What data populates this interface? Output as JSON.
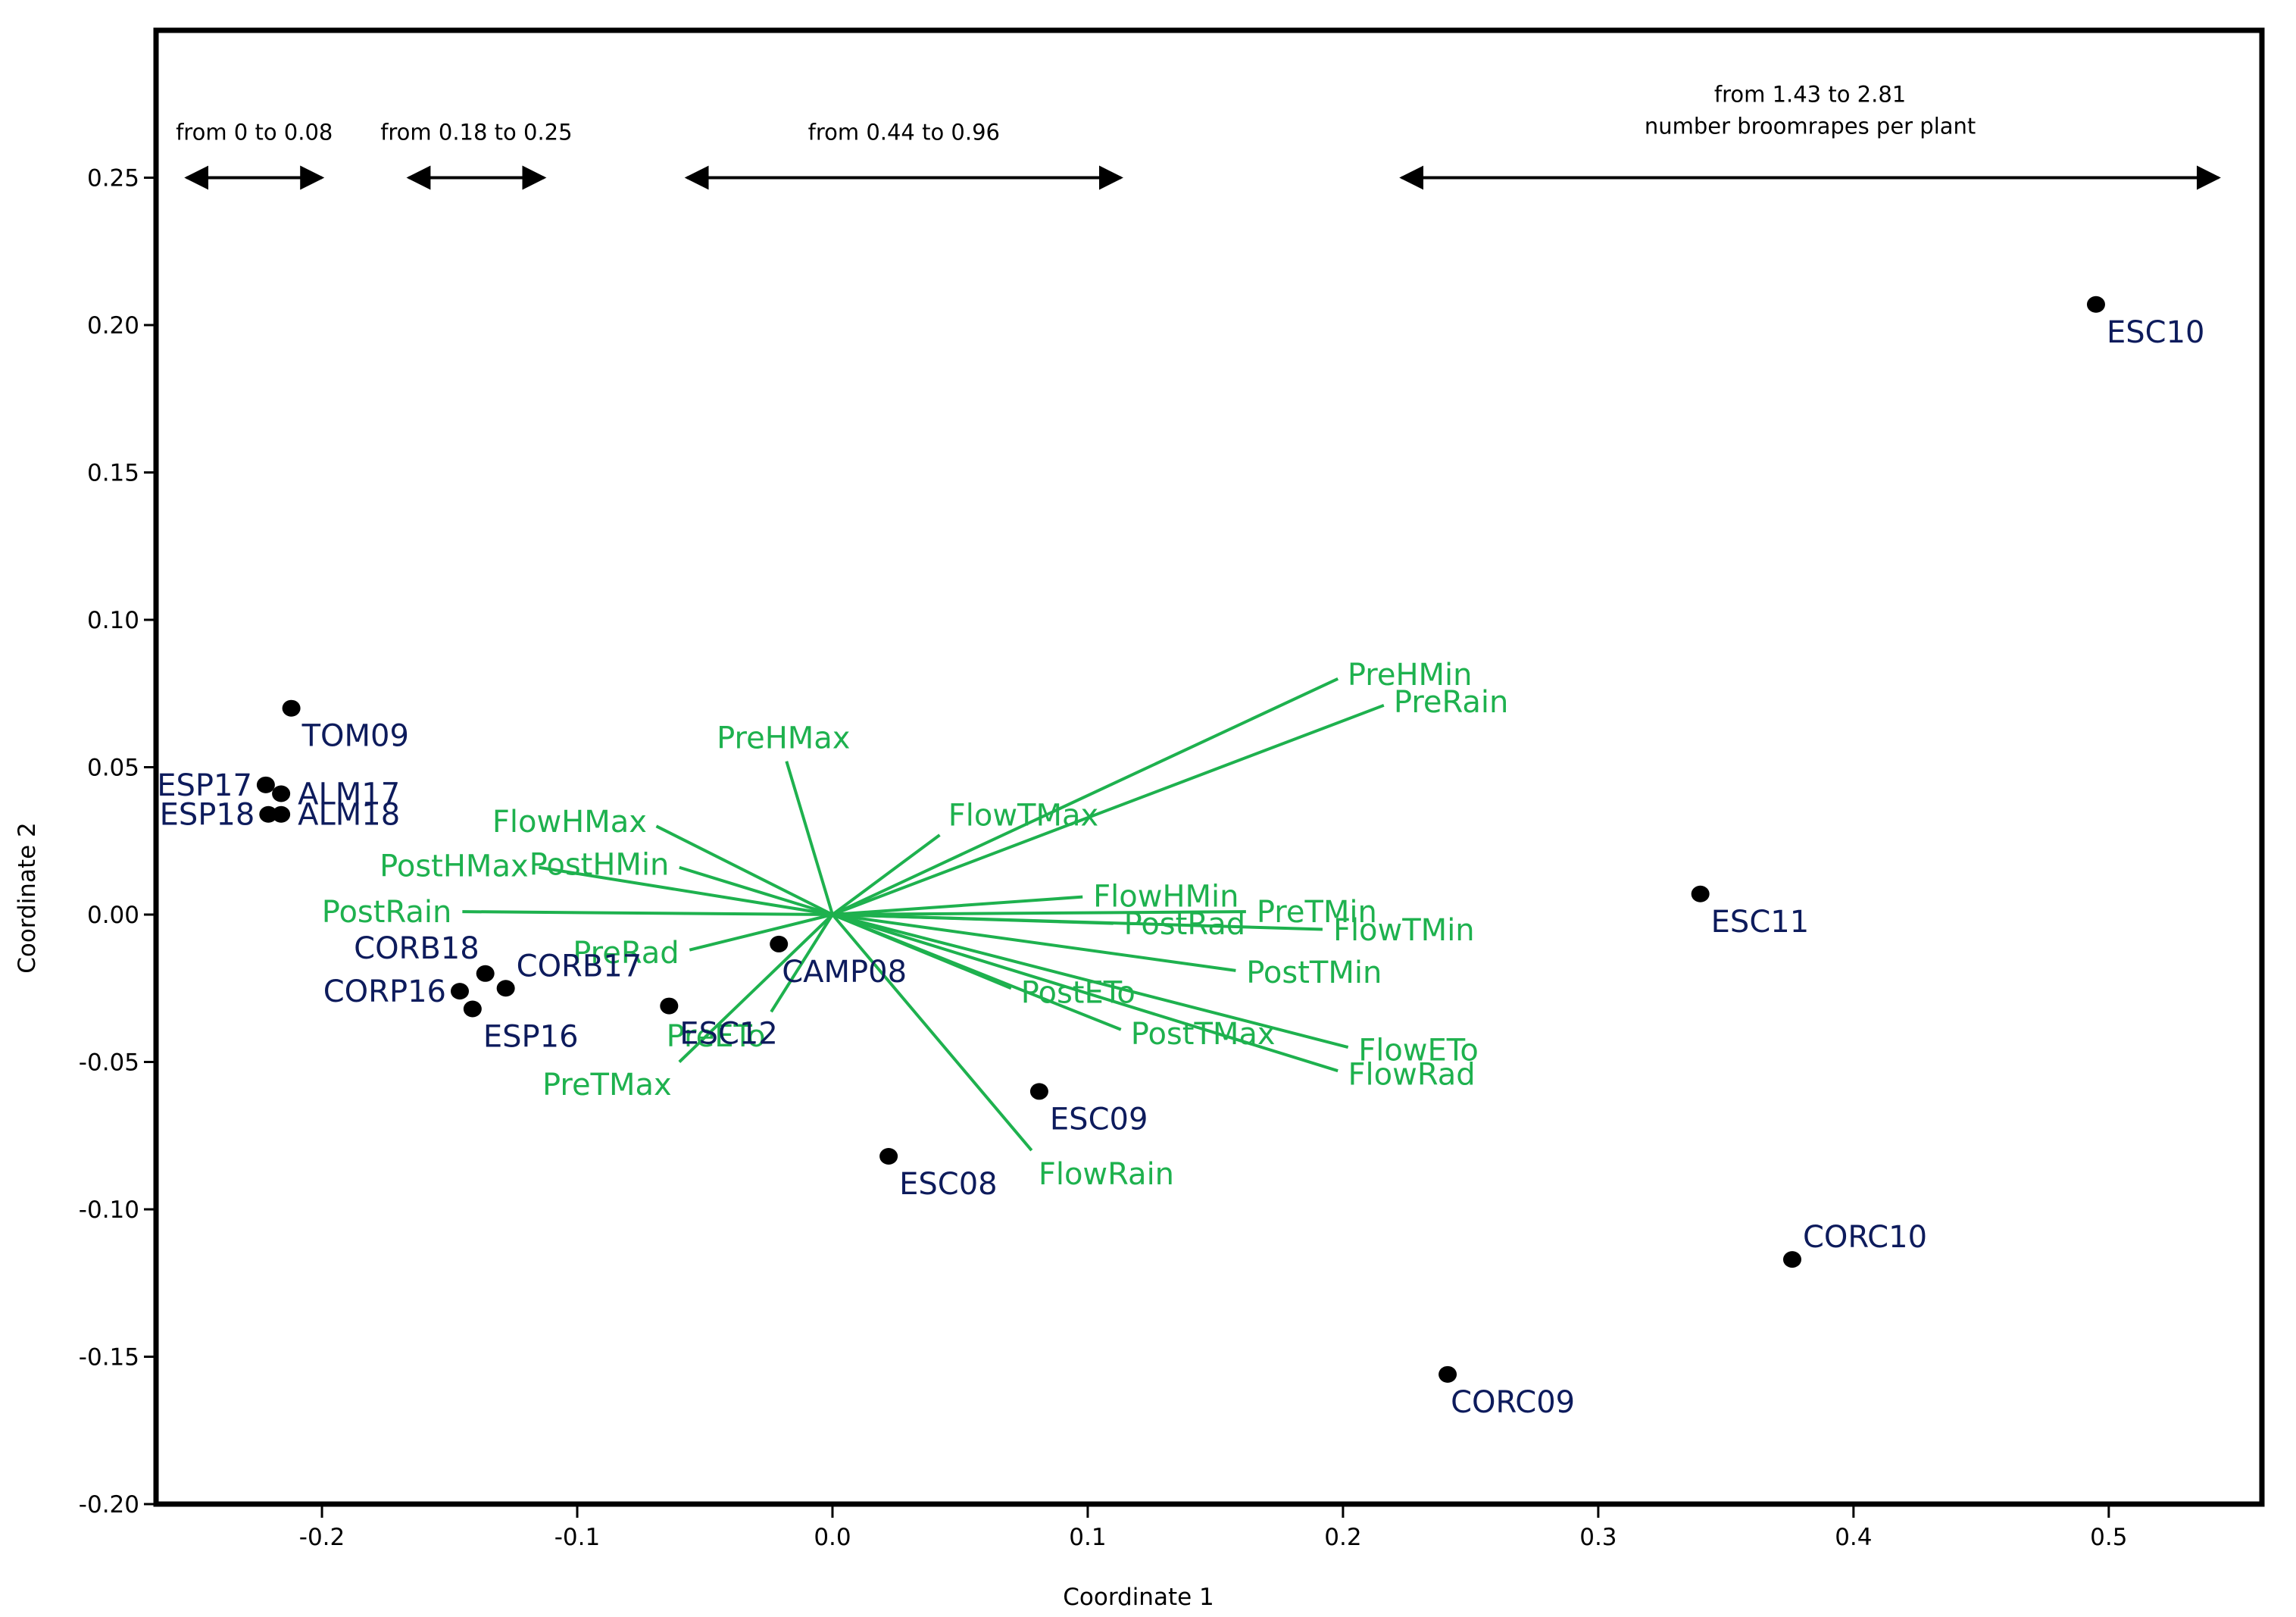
{
  "chart_data": {
    "type": "scatter",
    "subtype": "biplot",
    "xlabel": "Coordinate 1",
    "ylabel": "Coordinate 2",
    "xlim": [
      -0.265,
      0.56
    ],
    "ylim": [
      -0.2,
      0.3
    ],
    "xticks": [
      -0.2,
      -0.1,
      0.0,
      0.1,
      0.2,
      0.3,
      0.4,
      0.5
    ],
    "yticks": [
      -0.2,
      -0.15,
      -0.1,
      -0.05,
      0.0,
      0.05,
      0.1,
      0.15,
      0.2,
      0.25
    ],
    "xtick_labels": [
      "-0.2",
      "-0.1",
      "0.0",
      "0.1",
      "0.2",
      "0.3",
      "0.4",
      "0.5"
    ],
    "ytick_labels": [
      "-0.20",
      "-0.15",
      "-0.10",
      "-0.05",
      "0.00",
      "0.05",
      "0.10",
      "0.15",
      "0.20",
      "0.25"
    ],
    "colors": {
      "points": "#000000",
      "point_labels": "#0d1b5c",
      "vectors": "#1eb14e"
    },
    "points": [
      {
        "name": "ESC10",
        "x": 0.495,
        "y": 0.207,
        "label_anchor": "below-right"
      },
      {
        "name": "TOM09",
        "x": -0.212,
        "y": 0.07,
        "label_anchor": "below-right"
      },
      {
        "name": "ESP17",
        "x": -0.222,
        "y": 0.044,
        "label_anchor": "left"
      },
      {
        "name": "ALM17",
        "x": -0.216,
        "y": 0.041,
        "label_anchor": "right"
      },
      {
        "name": "ESP18",
        "x": -0.221,
        "y": 0.034,
        "label_anchor": "left"
      },
      {
        "name": "ALM18",
        "x": -0.216,
        "y": 0.034,
        "label_anchor": "right"
      },
      {
        "name": "ESC11",
        "x": 0.34,
        "y": 0.007,
        "label_anchor": "below-right"
      },
      {
        "name": "CORB18",
        "x": -0.136,
        "y": -0.02,
        "label_anchor": "above-left"
      },
      {
        "name": "CORB17",
        "x": -0.128,
        "y": -0.025,
        "label_anchor": "above-right"
      },
      {
        "name": "CORP16",
        "x": -0.146,
        "y": -0.026,
        "label_anchor": "left"
      },
      {
        "name": "ESP16",
        "x": -0.141,
        "y": -0.032,
        "label_anchor": "below-right"
      },
      {
        "name": "CAMP08",
        "x": -0.021,
        "y": -0.01,
        "label_anchor": "below"
      },
      {
        "name": "ESC12",
        "x": -0.064,
        "y": -0.031,
        "label_anchor": "below-right"
      },
      {
        "name": "ESC09",
        "x": 0.081,
        "y": -0.06,
        "label_anchor": "below-right"
      },
      {
        "name": "ESC08",
        "x": 0.022,
        "y": -0.082,
        "label_anchor": "below-right"
      },
      {
        "name": "CORC10",
        "x": 0.376,
        "y": -0.117,
        "label_anchor": "above-right"
      },
      {
        "name": "CORC09",
        "x": 0.241,
        "y": -0.156,
        "label_anchor": "below"
      }
    ],
    "vectors": [
      {
        "name": "PreHMin",
        "x": 0.198,
        "y": 0.08
      },
      {
        "name": "PreRain",
        "x": 0.216,
        "y": 0.071
      },
      {
        "name": "PreHMax",
        "x": -0.018,
        "y": 0.052
      },
      {
        "name": "FlowTMax",
        "x": 0.042,
        "y": 0.027
      },
      {
        "name": "FlowHMax",
        "x": -0.069,
        "y": 0.03
      },
      {
        "name": "PostHMin",
        "x": -0.06,
        "y": 0.016
      },
      {
        "name": "PostHMax",
        "x": -0.115,
        "y": 0.016
      },
      {
        "name": "PostRain",
        "x": -0.145,
        "y": 0.001
      },
      {
        "name": "FlowHMin",
        "x": 0.098,
        "y": 0.006
      },
      {
        "name": "PreTMin",
        "x": 0.162,
        "y": 0.001
      },
      {
        "name": "PostRad",
        "x": 0.11,
        "y": -0.003
      },
      {
        "name": "FlowTMin",
        "x": 0.192,
        "y": -0.005
      },
      {
        "name": "PreRad",
        "x": -0.056,
        "y": -0.012
      },
      {
        "name": "PostTMin",
        "x": 0.158,
        "y": -0.019
      },
      {
        "name": "PostETo",
        "x": 0.07,
        "y": -0.025
      },
      {
        "name": "PostTMax",
        "x": 0.113,
        "y": -0.039
      },
      {
        "name": "FlowETo",
        "x": 0.202,
        "y": -0.045
      },
      {
        "name": "FlowRad",
        "x": 0.198,
        "y": -0.053
      },
      {
        "name": "PreETo",
        "x": -0.024,
        "y": -0.033
      },
      {
        "name": "PreTMax",
        "x": -0.06,
        "y": -0.05
      },
      {
        "name": "FlowRain",
        "x": 0.078,
        "y": -0.08
      }
    ],
    "ranges": [
      {
        "label": "from 0 to 0.08",
        "sublabel": "",
        "x_start": -0.253,
        "x_end": -0.2
      },
      {
        "label": "from 0.18 to 0.25",
        "sublabel": "",
        "x_start": -0.166,
        "x_end": -0.113
      },
      {
        "label": "from 0.44 to 0.96",
        "sublabel": "",
        "x_start": -0.057,
        "x_end": 0.113
      },
      {
        "label": "from 1.43 to 2.81",
        "sublabel": "number broomrapes per plant",
        "x_start": 0.223,
        "x_end": 0.543
      }
    ],
    "range_arrow_y": 0.25
  }
}
